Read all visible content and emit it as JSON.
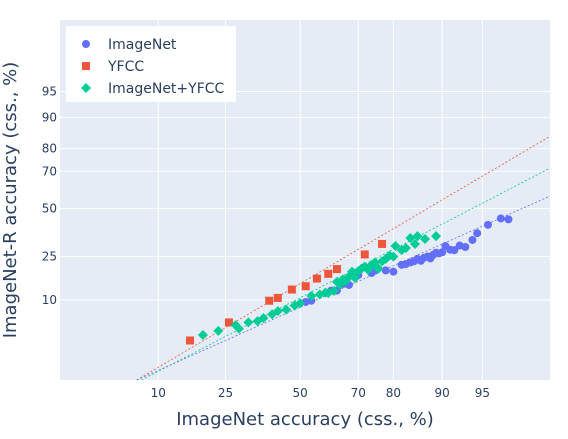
{
  "chart_data": {
    "type": "scatter",
    "xlabel": "ImageNet accuracy (css., %)",
    "ylabel": "ImageNet-R accuracy (css., %)",
    "x_scale": "probit",
    "y_scale": "probit",
    "x_ticks": [
      10,
      25,
      50,
      70,
      80,
      90,
      95
    ],
    "y_ticks": [
      10,
      25,
      50,
      70,
      80,
      90,
      95
    ],
    "xlim": [
      1.5,
      98.8
    ],
    "ylim": [
      0.8,
      99.6
    ],
    "grid": true,
    "legend_position": "top-left",
    "series": [
      {
        "name": "ImageNet",
        "marker": "circle",
        "color": "#636efa",
        "points": [
          [
            52,
            9.5
          ],
          [
            54,
            9.8
          ],
          [
            61,
            12.5
          ],
          [
            63,
            12.5
          ],
          [
            65,
            14.5
          ],
          [
            67,
            14.2
          ],
          [
            70,
            17.5
          ],
          [
            74,
            18.3
          ],
          [
            75,
            19.2
          ],
          [
            78,
            19.3
          ],
          [
            80,
            18.8
          ],
          [
            82,
            21.5
          ],
          [
            83,
            21.8
          ],
          [
            84,
            22.5
          ],
          [
            84.8,
            23.0
          ],
          [
            85.5,
            24.0
          ],
          [
            86.2,
            23.2
          ],
          [
            86.8,
            24.5
          ],
          [
            87.5,
            25.1
          ],
          [
            88,
            24.2
          ],
          [
            88.5,
            25.8
          ],
          [
            89,
            26.8
          ],
          [
            89.5,
            26.5
          ],
          [
            90,
            27.0
          ],
          [
            90.5,
            30.0
          ],
          [
            91.2,
            28.2
          ],
          [
            91.8,
            28.0
          ],
          [
            92.5,
            30.2
          ],
          [
            93.2,
            29.5
          ],
          [
            94,
            33.0
          ],
          [
            94.5,
            36.5
          ],
          [
            95.5,
            41.0
          ],
          [
            96.5,
            44.5
          ],
          [
            97,
            44.0
          ]
        ]
      },
      {
        "name": "YFCC",
        "marker": "square",
        "color": "#ef553b",
        "points": [
          [
            16,
            3.2
          ],
          [
            26,
            5.5
          ],
          [
            39,
            9.8
          ],
          [
            42,
            10.5
          ],
          [
            47,
            12.8
          ],
          [
            52,
            13.8
          ],
          [
            56,
            16.3
          ],
          [
            60,
            18.0
          ],
          [
            63,
            19.8
          ],
          [
            72,
            26.0
          ],
          [
            77,
            31.0
          ]
        ]
      },
      {
        "name": "ImageNet+YFCC",
        "marker": "diamond",
        "color": "#00cc96",
        "points": [
          [
            19,
            3.8
          ],
          [
            23,
            4.3
          ],
          [
            28,
            5.1
          ],
          [
            29,
            4.6
          ],
          [
            32,
            5.5
          ],
          [
            35,
            5.7
          ],
          [
            37,
            6.2
          ],
          [
            40,
            6.9
          ],
          [
            42,
            7.5
          ],
          [
            45,
            7.8
          ],
          [
            48,
            8.7
          ],
          [
            50,
            9.2
          ],
          [
            54,
            11.0
          ],
          [
            57,
            11.4
          ],
          [
            59,
            11.9
          ],
          [
            60,
            11.8
          ],
          [
            62,
            12.4
          ],
          [
            63,
            15.2
          ],
          [
            64,
            14.3
          ],
          [
            65,
            16.0
          ],
          [
            66,
            15.5
          ],
          [
            67,
            17.0
          ],
          [
            68,
            18.8
          ],
          [
            69,
            16.5
          ],
          [
            70,
            19.0
          ],
          [
            71,
            20.0
          ],
          [
            72,
            20.8
          ],
          [
            73,
            19.5
          ],
          [
            74,
            21.5
          ],
          [
            75,
            22.5
          ],
          [
            76,
            20.0
          ],
          [
            77,
            23.0
          ],
          [
            78,
            24.0
          ],
          [
            79,
            25.5
          ],
          [
            80,
            25.0
          ],
          [
            80.5,
            30.0
          ],
          [
            82,
            28.0
          ],
          [
            83,
            29.0
          ],
          [
            84,
            34.0
          ],
          [
            85,
            31.0
          ],
          [
            85.5,
            35.0
          ],
          [
            87,
            33.5
          ],
          [
            89,
            35.0
          ]
        ]
      }
    ],
    "fit_lines": [
      {
        "color": "#ef553b",
        "from": [
          7.0,
          0.8
        ],
        "to": [
          98.8,
          84.5
        ]
      },
      {
        "color": "#00cc96",
        "from": [
          7.6,
          0.8
        ],
        "to": [
          98.8,
          71.5
        ]
      },
      {
        "color": "#636efa",
        "from": [
          7.0,
          0.8
        ],
        "to": [
          98.8,
          57.0
        ]
      }
    ]
  }
}
